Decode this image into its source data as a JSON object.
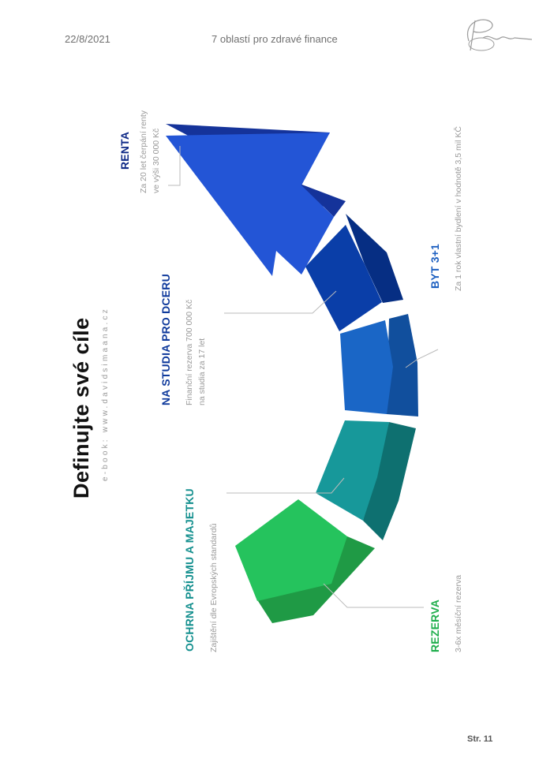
{
  "header": {
    "date": "22/8/2021",
    "doc_title": "7 oblastí pro zdravé finance"
  },
  "page": {
    "title": "Definujte své cíle",
    "subtitle": "e-book: www.davidsimaana.cz",
    "number": "Str. 11"
  },
  "goals": [
    {
      "label": "RENTA",
      "desc_line1": "Za  20  let  čerpání  renty",
      "desc_line2": "ve výši 30 000 Kč",
      "color": "#0f2a87"
    },
    {
      "label": "NA STUDIA PRO DCERU",
      "desc_line1": "Finanční rezerva 700 000 Kč",
      "desc_line2": "na studia za 17 let",
      "color": "#0f3a9c"
    },
    {
      "label": "BYT 3+1",
      "desc_line1": "Za 1 rok vlastní bydlení v hodnotě 3,5 mil KČ",
      "color": "#1c5fc0"
    },
    {
      "label": "OCHRNA PŘÍJMU A MAJETKU",
      "desc_line1": "Zajištění dle Evropských standardů",
      "color": "#15908f"
    },
    {
      "label": "REZERVA",
      "desc_line1": "3-6x měsíční rezerva",
      "color": "#1fae4c"
    }
  ],
  "segment_colors": {
    "green_top": "#25c35d",
    "green_side": "#1f9a45",
    "teal_top": "#17989a",
    "teal_side": "#0e7070",
    "blue_top": "#1a66c6",
    "blue_side": "#114f9d",
    "navy_top": "#0a3ea8",
    "navy_side": "#062e83",
    "arrow_top": "#2355d6",
    "arrow_side": "#15339a"
  }
}
